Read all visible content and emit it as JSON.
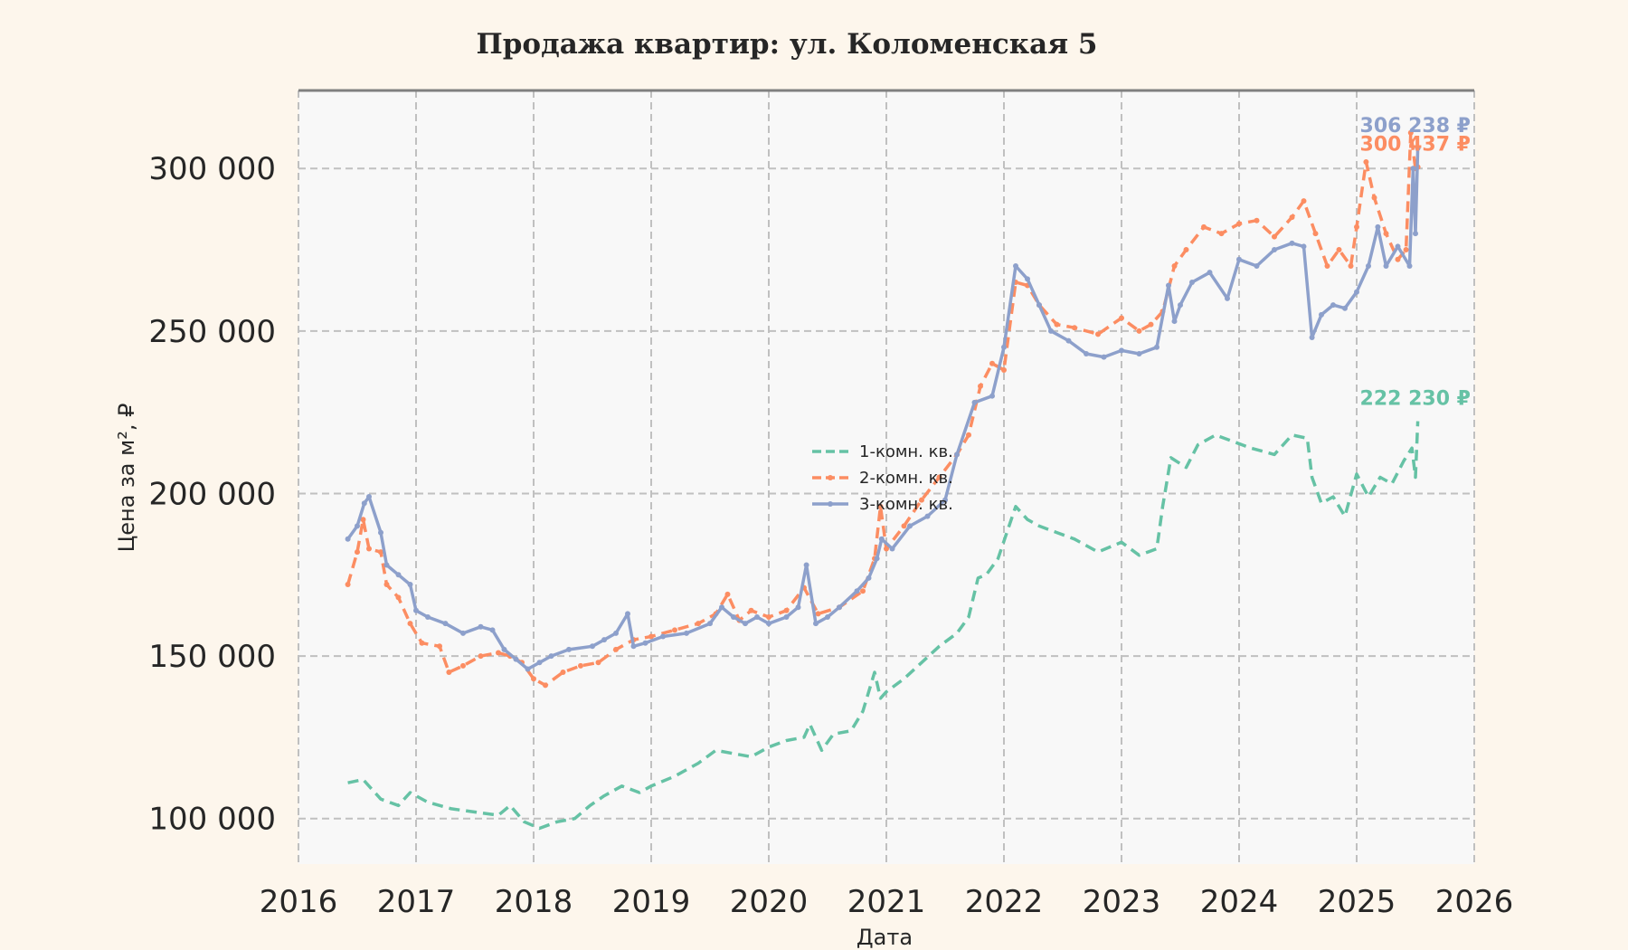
{
  "chart_data": {
    "type": "line",
    "title": "Продажа квартир: ул. Коломенская 5",
    "xlabel": "Дата",
    "ylabel": "Цена за м², ₽",
    "xlim": [
      2016,
      2026
    ],
    "ylim": [
      86000,
      324000
    ],
    "x_ticks": [
      "2016",
      "2017",
      "2018",
      "2019",
      "2020",
      "2021",
      "2022",
      "2023",
      "2024",
      "2025",
      "2026"
    ],
    "y_ticks": [
      {
        "value": 100000,
        "label": "100 000"
      },
      {
        "value": 150000,
        "label": "150 000"
      },
      {
        "value": 200000,
        "label": "200 000"
      },
      {
        "value": 250000,
        "label": "250 000"
      },
      {
        "value": 300000,
        "label": "300 000"
      }
    ],
    "grid": true,
    "legend_position": "center",
    "series": [
      {
        "name": "1-комн. кв.",
        "color": "#66c2a5",
        "style": "dashed",
        "end_label": "222 230 ₽",
        "x": [
          2016.42,
          2016.55,
          2016.7,
          2016.85,
          2016.95,
          2017.1,
          2017.3,
          2017.5,
          2017.7,
          2017.8,
          2017.92,
          2018.05,
          2018.2,
          2018.35,
          2018.48,
          2018.6,
          2018.75,
          2018.9,
          2019.0,
          2019.2,
          2019.4,
          2019.55,
          2019.7,
          2019.85,
          2020.0,
          2020.15,
          2020.3,
          2020.35,
          2020.45,
          2020.55,
          2020.7,
          2020.8,
          2020.9,
          2020.95,
          2021.0,
          2021.15,
          2021.3,
          2021.45,
          2021.6,
          2021.7,
          2021.78,
          2021.85,
          2021.95,
          2022.1,
          2022.2,
          2022.3,
          2022.45,
          2022.6,
          2022.8,
          2023.0,
          2023.15,
          2023.3,
          2023.35,
          2023.42,
          2023.55,
          2023.65,
          2023.8,
          2023.95,
          2024.1,
          2024.3,
          2024.45,
          2024.58,
          2024.62,
          2024.7,
          2024.8,
          2024.9,
          2025.0,
          2025.1,
          2025.2,
          2025.3,
          2025.4,
          2025.47,
          2025.5,
          2025.52
        ],
        "y": [
          111000,
          112000,
          106000,
          104000,
          108000,
          105000,
          103000,
          102000,
          101000,
          104000,
          99000,
          97000,
          99000,
          100000,
          104000,
          107000,
          110000,
          108000,
          110000,
          113000,
          117000,
          121000,
          120000,
          119000,
          122000,
          124000,
          125000,
          129000,
          121000,
          126000,
          127000,
          133000,
          145000,
          137000,
          139000,
          143000,
          148000,
          153000,
          157000,
          162000,
          174000,
          175000,
          180000,
          196000,
          192000,
          190000,
          188000,
          186000,
          182000,
          185000,
          181000,
          183000,
          196000,
          211000,
          208000,
          215000,
          218000,
          216000,
          214000,
          212000,
          218000,
          217000,
          205000,
          197000,
          199000,
          193000,
          206000,
          199000,
          205000,
          203000,
          210000,
          214000,
          205000,
          222230
        ]
      },
      {
        "name": "2-комн. кв.",
        "color": "#fc8d62",
        "style": "dashed-markers",
        "end_label": "300 437 ₽",
        "x": [
          2016.42,
          2016.5,
          2016.55,
          2016.6,
          2016.7,
          2016.75,
          2016.85,
          2016.95,
          2017.05,
          2017.2,
          2017.28,
          2017.4,
          2017.55,
          2017.7,
          2017.8,
          2017.9,
          2018.0,
          2018.1,
          2018.25,
          2018.4,
          2018.55,
          2018.7,
          2018.85,
          2019.0,
          2019.2,
          2019.4,
          2019.55,
          2019.65,
          2019.75,
          2019.85,
          2020.0,
          2020.15,
          2020.3,
          2020.42,
          2020.6,
          2020.8,
          2020.9,
          2020.95,
          2021.0,
          2021.15,
          2021.3,
          2021.45,
          2021.6,
          2021.7,
          2021.8,
          2021.9,
          2022.0,
          2022.1,
          2022.2,
          2022.3,
          2022.45,
          2022.6,
          2022.8,
          2023.0,
          2023.15,
          2023.25,
          2023.35,
          2023.45,
          2023.55,
          2023.7,
          2023.85,
          2024.0,
          2024.15,
          2024.3,
          2024.45,
          2024.55,
          2024.65,
          2024.75,
          2024.85,
          2024.95,
          2025.0,
          2025.08,
          2025.15,
          2025.25,
          2025.35,
          2025.42,
          2025.46,
          2025.5,
          2025.52
        ],
        "y": [
          172000,
          182000,
          192000,
          183000,
          182000,
          172000,
          168000,
          160000,
          154000,
          153000,
          145000,
          147000,
          150000,
          151000,
          150000,
          148000,
          143000,
          141000,
          145000,
          147000,
          148000,
          152000,
          155000,
          156000,
          158000,
          160000,
          163000,
          169000,
          161000,
          164000,
          162000,
          164000,
          171000,
          163000,
          165000,
          170000,
          180000,
          196000,
          183000,
          190000,
          198000,
          205000,
          212000,
          218000,
          233000,
          240000,
          238000,
          265000,
          264000,
          258000,
          252000,
          251000,
          249000,
          254000,
          250000,
          252000,
          256000,
          270000,
          275000,
          282000,
          280000,
          283000,
          284000,
          279000,
          285000,
          290000,
          280000,
          270000,
          275000,
          270000,
          282000,
          302000,
          291000,
          280000,
          272000,
          275000,
          311000,
          300000,
          300437
        ]
      },
      {
        "name": "3-комн. кв.",
        "color": "#8da0cb",
        "style": "solid-markers",
        "end_label": "306 238 ₽",
        "x": [
          2016.42,
          2016.5,
          2016.56,
          2016.6,
          2016.7,
          2016.75,
          2016.85,
          2016.95,
          2017.0,
          2017.1,
          2017.25,
          2017.4,
          2017.55,
          2017.65,
          2017.75,
          2017.85,
          2017.95,
          2018.05,
          2018.15,
          2018.3,
          2018.5,
          2018.6,
          2018.7,
          2018.8,
          2018.85,
          2018.95,
          2019.1,
          2019.3,
          2019.5,
          2019.6,
          2019.7,
          2019.8,
          2019.9,
          2020.0,
          2020.15,
          2020.25,
          2020.32,
          2020.4,
          2020.5,
          2020.6,
          2020.75,
          2020.85,
          2020.92,
          2020.96,
          2021.05,
          2021.2,
          2021.35,
          2021.5,
          2021.6,
          2021.75,
          2021.9,
          2022.0,
          2022.1,
          2022.2,
          2022.3,
          2022.4,
          2022.55,
          2022.7,
          2022.85,
          2023.0,
          2023.15,
          2023.3,
          2023.4,
          2023.45,
          2023.5,
          2023.6,
          2023.75,
          2023.9,
          2024.0,
          2024.15,
          2024.3,
          2024.45,
          2024.55,
          2024.62,
          2024.7,
          2024.8,
          2024.9,
          2025.0,
          2025.1,
          2025.18,
          2025.25,
          2025.35,
          2025.45,
          2025.48,
          2025.5,
          2025.52
        ],
        "y": [
          186000,
          190000,
          197000,
          199000,
          188000,
          178000,
          175000,
          172000,
          164000,
          162000,
          160000,
          157000,
          159000,
          158000,
          152000,
          149000,
          146000,
          148000,
          150000,
          152000,
          153000,
          155000,
          157000,
          163000,
          153000,
          154000,
          156000,
          157000,
          160000,
          165000,
          162000,
          160000,
          162000,
          160000,
          162000,
          165000,
          178000,
          160000,
          162000,
          165000,
          170000,
          174000,
          180000,
          186000,
          183000,
          190000,
          193000,
          198000,
          212000,
          228000,
          230000,
          245000,
          270000,
          266000,
          258000,
          250000,
          247000,
          243000,
          242000,
          244000,
          243000,
          245000,
          264000,
          253000,
          258000,
          265000,
          268000,
          260000,
          272000,
          270000,
          275000,
          277000,
          276000,
          248000,
          255000,
          258000,
          257000,
          262000,
          270000,
          282000,
          270000,
          276000,
          270000,
          300000,
          280000,
          306238
        ]
      }
    ]
  }
}
